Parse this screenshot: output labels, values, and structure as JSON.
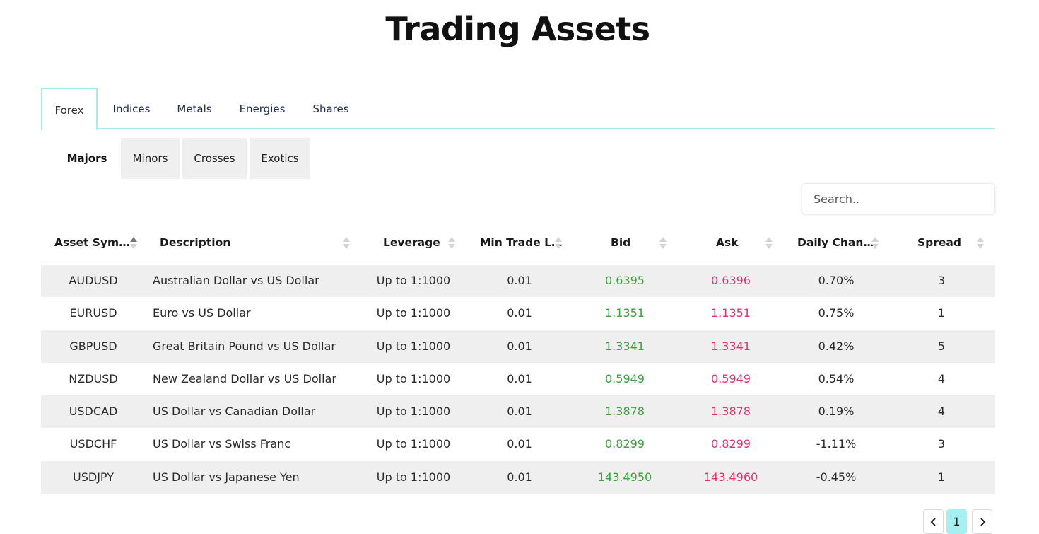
{
  "page": {
    "title": "Trading Assets"
  },
  "main_tabs": [
    {
      "label": "Forex",
      "active": true
    },
    {
      "label": "Indices",
      "active": false
    },
    {
      "label": "Metals",
      "active": false
    },
    {
      "label": "Energies",
      "active": false
    },
    {
      "label": "Shares",
      "active": false
    }
  ],
  "sub_tabs": [
    {
      "label": "Majors",
      "active": true
    },
    {
      "label": "Minors",
      "active": false
    },
    {
      "label": "Crosses",
      "active": false
    },
    {
      "label": "Exotics",
      "active": false
    }
  ],
  "search": {
    "placeholder": "Search..",
    "value": ""
  },
  "table": {
    "headers": [
      "Asset Symbol...",
      "Description",
      "Leverage",
      "Min Trade Lot...",
      "Bid",
      "Ask",
      "Daily Change...",
      "Spread"
    ],
    "sorted_column": "Asset Symbol...",
    "sort_direction": "ascending",
    "rows": [
      {
        "symbol": "AUDUSD",
        "description": "Australian Dollar vs US Dollar",
        "leverage": "Up to 1:1000",
        "min_lot": "0.01",
        "bid": "0.6395",
        "ask": "0.6396",
        "change": "0.70%",
        "spread": "3"
      },
      {
        "symbol": "EURUSD",
        "description": "Euro vs US Dollar",
        "leverage": "Up to 1:1000",
        "min_lot": "0.01",
        "bid": "1.1351",
        "ask": "1.1351",
        "change": "0.75%",
        "spread": "1"
      },
      {
        "symbol": "GBPUSD",
        "description": "Great Britain Pound vs US Dollar",
        "leverage": "Up to 1:1000",
        "min_lot": "0.01",
        "bid": "1.3341",
        "ask": "1.3341",
        "change": "0.42%",
        "spread": "5"
      },
      {
        "symbol": "NZDUSD",
        "description": "New Zealand Dollar vs US Dollar",
        "leverage": "Up to 1:1000",
        "min_lot": "0.01",
        "bid": "0.5949",
        "ask": "0.5949",
        "change": "0.54%",
        "spread": "4"
      },
      {
        "symbol": "USDCAD",
        "description": "US Dollar vs Canadian Dollar",
        "leverage": "Up to 1:1000",
        "min_lot": "0.01",
        "bid": "1.3878",
        "ask": "1.3878",
        "change": "0.19%",
        "spread": "4"
      },
      {
        "symbol": "USDCHF",
        "description": "US Dollar vs Swiss Franc",
        "leverage": "Up to 1:1000",
        "min_lot": "0.01",
        "bid": "0.8299",
        "ask": "0.8299",
        "change": "-1.11%",
        "spread": "3"
      },
      {
        "symbol": "USDJPY",
        "description": "US Dollar vs Japanese Yen",
        "leverage": "Up to 1:1000",
        "min_lot": "0.01",
        "bid": "143.4950",
        "ask": "143.4960",
        "change": "-0.45%",
        "spread": "1"
      }
    ]
  },
  "pagination": {
    "prev_icon": "chevron-left-icon",
    "current_page": "1",
    "next_icon": "chevron-right-icon"
  },
  "colors": {
    "accent": "#a6ecef",
    "bid": "#3aa23a",
    "ask": "#e0336b",
    "row_shade": "#efefef"
  }
}
